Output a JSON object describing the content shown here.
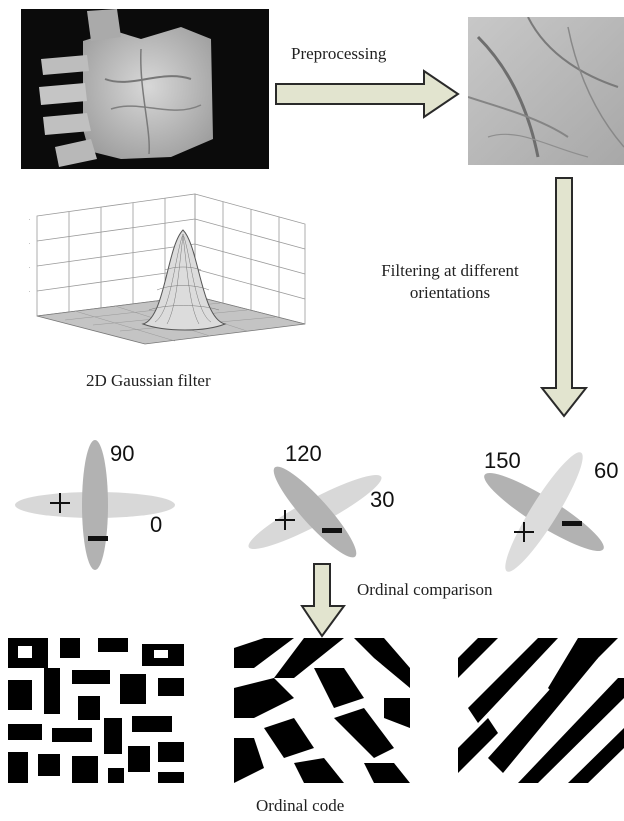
{
  "labels": {
    "preprocessing": "Preprocessing",
    "filtering": "Filtering at different\norientations",
    "gaussian": "2D Gaussian filter",
    "ordinal_comparison": "Ordinal comparison",
    "ordinal_code": "Ordinal code"
  },
  "filter_pairs": [
    {
      "a": "0",
      "b": "90"
    },
    {
      "a": "30",
      "b": "120"
    },
    {
      "a": "60",
      "b": "150"
    }
  ],
  "colors": {
    "arrow_fill": "#e2e4cf",
    "arrow_stroke": "#2a2a2a",
    "ellipse_light": "#d8d8d8",
    "ellipse_dark": "#b2b2b2"
  },
  "icons": [
    "plus-sign",
    "minus-sign"
  ]
}
